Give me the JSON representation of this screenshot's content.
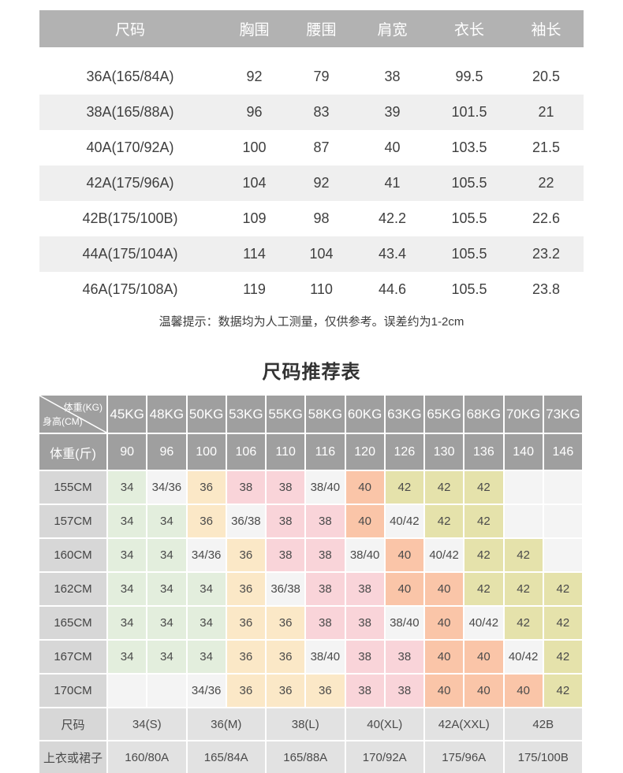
{
  "measure_table": {
    "header": [
      "尺码",
      "胸围",
      "腰围",
      "肩宽",
      "衣长",
      "袖长"
    ],
    "rows": [
      [
        "36A(165/84A)",
        "92",
        "79",
        "38",
        "99.5",
        "20.5"
      ],
      [
        "38A(165/88A)",
        "96",
        "83",
        "39",
        "101.5",
        "21"
      ],
      [
        "40A(170/92A)",
        "100",
        "87",
        "40",
        "103.5",
        "21.5"
      ],
      [
        "42A(175/96A)",
        "104",
        "92",
        "41",
        "105.5",
        "22"
      ],
      [
        "42B(175/100B)",
        "109",
        "98",
        "42.2",
        "105.5",
        "22.6"
      ],
      [
        "44A(175/104A)",
        "114",
        "104",
        "43.4",
        "105.5",
        "23.2"
      ],
      [
        "46A(175/108A)",
        "119",
        "110",
        "44.6",
        "105.5",
        "23.8"
      ]
    ],
    "note": "温馨提示：数据均为人工测量，仅供参考。误差约为1-2cm"
  },
  "recommend_table": {
    "title": "尺码推荐表",
    "corner_top": "体重(KG)",
    "corner_bottom": "身高(CM)",
    "weight_kg_row": [
      "45KG",
      "48KG",
      "50KG",
      "53KG",
      "55KG",
      "58KG",
      "60KG",
      "63KG",
      "65KG",
      "68KG",
      "70KG",
      "73KG"
    ],
    "weight_jin_label": "体重(斤)",
    "weight_jin_row": [
      "90",
      "96",
      "100",
      "106",
      "110",
      "116",
      "120",
      "126",
      "130",
      "136",
      "140",
      "146"
    ],
    "height_rows": [
      {
        "label": "155CM",
        "cells": [
          [
            "34",
            "green"
          ],
          [
            "34/36",
            "plain"
          ],
          [
            "36",
            "cream"
          ],
          [
            "38",
            "pink"
          ],
          [
            "38",
            "pink"
          ],
          [
            "38/40",
            "plain"
          ],
          [
            "40",
            "salmon"
          ],
          [
            "42",
            "khaki"
          ],
          [
            "42",
            "khaki"
          ],
          [
            "42",
            "khaki"
          ],
          [
            "",
            "plain"
          ],
          [
            "",
            "plain"
          ]
        ]
      },
      {
        "label": "157CM",
        "cells": [
          [
            "34",
            "green"
          ],
          [
            "34",
            "green"
          ],
          [
            "36",
            "cream"
          ],
          [
            "36/38",
            "plain"
          ],
          [
            "38",
            "pink"
          ],
          [
            "38",
            "pink"
          ],
          [
            "40",
            "salmon"
          ],
          [
            "40/42",
            "plain"
          ],
          [
            "42",
            "khaki"
          ],
          [
            "42",
            "khaki"
          ],
          [
            "",
            "plain"
          ],
          [
            "",
            "plain"
          ]
        ]
      },
      {
        "label": "160CM",
        "cells": [
          [
            "34",
            "green"
          ],
          [
            "34",
            "green"
          ],
          [
            "34/36",
            "plain"
          ],
          [
            "36",
            "cream"
          ],
          [
            "38",
            "pink"
          ],
          [
            "38",
            "pink"
          ],
          [
            "38/40",
            "plain"
          ],
          [
            "40",
            "salmon"
          ],
          [
            "40/42",
            "plain"
          ],
          [
            "42",
            "khaki"
          ],
          [
            "42",
            "khaki"
          ],
          [
            "",
            "plain"
          ]
        ]
      },
      {
        "label": "162CM",
        "cells": [
          [
            "34",
            "green"
          ],
          [
            "34",
            "green"
          ],
          [
            "34",
            "green"
          ],
          [
            "36",
            "cream"
          ],
          [
            "36/38",
            "plain"
          ],
          [
            "38",
            "pink"
          ],
          [
            "38",
            "pink"
          ],
          [
            "40",
            "salmon"
          ],
          [
            "40",
            "salmon"
          ],
          [
            "42",
            "khaki"
          ],
          [
            "42",
            "khaki"
          ],
          [
            "42",
            "khaki"
          ]
        ]
      },
      {
        "label": "165CM",
        "cells": [
          [
            "34",
            "green"
          ],
          [
            "34",
            "green"
          ],
          [
            "34",
            "green"
          ],
          [
            "36",
            "cream"
          ],
          [
            "36",
            "cream"
          ],
          [
            "38",
            "pink"
          ],
          [
            "38",
            "pink"
          ],
          [
            "38/40",
            "plain"
          ],
          [
            "40",
            "salmon"
          ],
          [
            "40/42",
            "plain"
          ],
          [
            "42",
            "khaki"
          ],
          [
            "42",
            "khaki"
          ]
        ]
      },
      {
        "label": "167CM",
        "cells": [
          [
            "34",
            "green"
          ],
          [
            "34",
            "green"
          ],
          [
            "34",
            "green"
          ],
          [
            "36",
            "cream"
          ],
          [
            "36",
            "cream"
          ],
          [
            "38/40",
            "plain"
          ],
          [
            "38",
            "pink"
          ],
          [
            "38",
            "pink"
          ],
          [
            "40",
            "salmon"
          ],
          [
            "40",
            "salmon"
          ],
          [
            "40/42",
            "plain"
          ],
          [
            "42",
            "khaki"
          ]
        ]
      },
      {
        "label": "170CM",
        "cells": [
          [
            "",
            "plain"
          ],
          [
            "",
            "plain"
          ],
          [
            "34/36",
            "plain"
          ],
          [
            "36",
            "cream"
          ],
          [
            "36",
            "cream"
          ],
          [
            "36",
            "cream"
          ],
          [
            "38",
            "pink"
          ],
          [
            "38",
            "pink"
          ],
          [
            "40",
            "salmon"
          ],
          [
            "40",
            "salmon"
          ],
          [
            "40",
            "salmon"
          ],
          [
            "42",
            "khaki"
          ]
        ]
      }
    ],
    "size_row": {
      "label": "尺码",
      "cells": [
        "34(S)",
        "36(M)",
        "38(L)",
        "40(XL)",
        "42A(XXL)",
        "42B"
      ]
    },
    "garment_row": {
      "label": "上衣或裙子",
      "cells": [
        "160/80A",
        "165/84A",
        "165/88A",
        "170/92A",
        "175/96A",
        "175/100B"
      ]
    }
  },
  "colors": {
    "t1_header_bg": "#b2b2b2",
    "t1_row_alt": "#efefef",
    "t2_header_bg": "#9f9f9f",
    "label_bg": "#d7d7d7",
    "bottom_row_bg": "#e2e2e2",
    "green": "#e3eedd",
    "cream": "#fbe8c7",
    "pink": "#f9d4d9",
    "salmon": "#fac5a8",
    "khaki": "#e5e2ab",
    "plain": "#f4f4f4"
  }
}
